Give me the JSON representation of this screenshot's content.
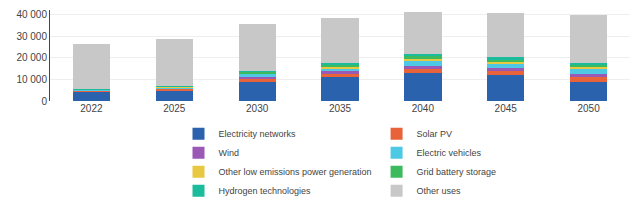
{
  "chart_data": {
    "type": "bar",
    "stacked": true,
    "categories": [
      "2022",
      "2025",
      "2030",
      "2035",
      "2040",
      "2045",
      "2050"
    ],
    "series": [
      {
        "name": "Electricity networks",
        "color": "#2b62ae",
        "values": [
          4500,
          5000,
          9000,
          11000,
          13000,
          12000,
          9000
        ]
      },
      {
        "name": "Solar PV",
        "color": "#e8623a",
        "values": [
          300,
          600,
          1200,
          1800,
          2000,
          2000,
          2000
        ]
      },
      {
        "name": "Wind",
        "color": "#9b59b6",
        "values": [
          200,
          300,
          800,
          900,
          1200,
          1200,
          1400
        ]
      },
      {
        "name": "Electric vehicles",
        "color": "#4dc9e6",
        "values": [
          150,
          500,
          1500,
          1500,
          2500,
          2000,
          2500
        ]
      },
      {
        "name": "Other low emissions power generation",
        "color": "#e8c840",
        "values": [
          80,
          150,
          300,
          500,
          600,
          600,
          600
        ]
      },
      {
        "name": "Grid battery storage",
        "color": "#3dba5e",
        "values": [
          80,
          200,
          600,
          1200,
          1500,
          1500,
          1200
        ]
      },
      {
        "name": "Hydrogen technologies",
        "color": "#1abc9c",
        "values": [
          80,
          150,
          400,
          600,
          800,
          800,
          700
        ]
      },
      {
        "name": "Other uses",
        "color": "#c8c8c8",
        "values": [
          21110,
          21600,
          21700,
          21000,
          19400,
          20400,
          22100
        ]
      }
    ],
    "ylim": [
      0,
      42000
    ],
    "yticks": [
      0,
      {
        "value": 10000,
        "label": "10 000"
      },
      {
        "value": 20000,
        "label": "20 000"
      },
      {
        "value": 30000,
        "label": "30 000"
      },
      {
        "value": 40000,
        "label": "40 000"
      }
    ],
    "grid": true,
    "legend": "bottom"
  }
}
